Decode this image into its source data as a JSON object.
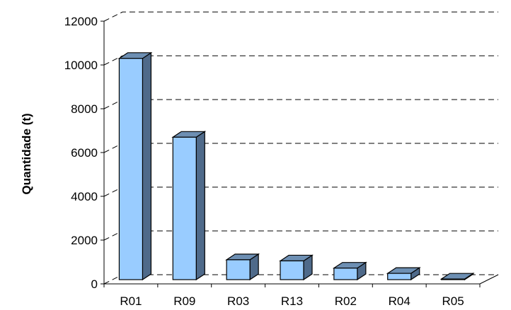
{
  "chart_data": {
    "type": "bar",
    "style": "3d-column",
    "categories": [
      "R01",
      "R09",
      "R03",
      "R13",
      "R02",
      "R04",
      "R05"
    ],
    "values": [
      10300,
      6700,
      1100,
      1050,
      720,
      480,
      220
    ],
    "ylabel": "Quantidade (t)",
    "xlabel": "",
    "ylim": [
      0,
      12000
    ],
    "yticks": [
      0,
      2000,
      4000,
      6000,
      8000,
      10000,
      12000
    ],
    "grid": true,
    "legend": "none",
    "colors": {
      "bar_front": "#99ccff",
      "bar_top": "#6d8fb3",
      "bar_side": "#4f6a8a",
      "grid": "#000000"
    }
  }
}
